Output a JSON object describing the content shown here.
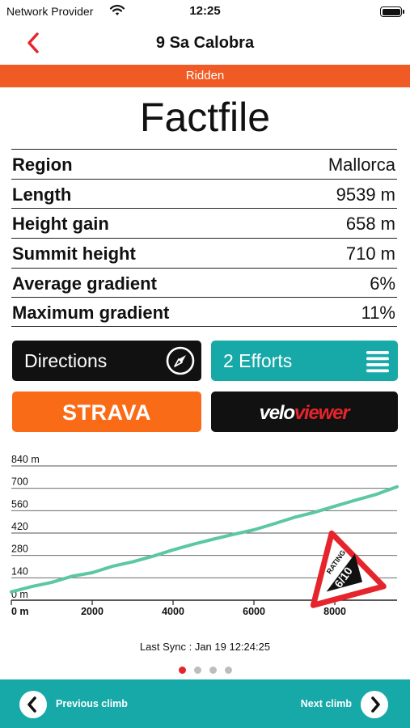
{
  "status_bar": {
    "carrier": "Network Provider",
    "time": "12:25"
  },
  "nav": {
    "title": "9 Sa Calobra"
  },
  "banner": {
    "text": "Ridden"
  },
  "heading": "Factfile",
  "facts": [
    {
      "label": "Region",
      "value": "Mallorca"
    },
    {
      "label": "Length",
      "value": "9539 m"
    },
    {
      "label": "Height gain",
      "value": "658 m"
    },
    {
      "label": "Summit height",
      "value": "710 m"
    },
    {
      "label": "Average gradient",
      "value": "6%"
    },
    {
      "label": "Maximum gradient",
      "value": "11%"
    }
  ],
  "buttons": {
    "directions": "Directions",
    "efforts": "2 Efforts",
    "strava": "STRAVA",
    "veloviewer_a": "velo",
    "veloviewer_b": "viewer"
  },
  "rating": {
    "label": "RATING",
    "value": "6/10"
  },
  "chart_data": {
    "type": "line",
    "x": [
      0,
      500,
      1000,
      1500,
      2000,
      2500,
      3000,
      3500,
      4000,
      4500,
      5000,
      5500,
      6000,
      6500,
      7000,
      7500,
      8000,
      8500,
      9000,
      9539
    ],
    "y": [
      52,
      85,
      112,
      150,
      172,
      212,
      240,
      275,
      315,
      350,
      382,
      412,
      440,
      478,
      518,
      550,
      588,
      625,
      660,
      710
    ],
    "xlim": [
      0,
      9539
    ],
    "ylim": [
      0,
      840
    ],
    "yticks": [
      "0 m",
      "140",
      "280",
      "420",
      "560",
      "700",
      "840 m"
    ],
    "xticks": [
      "0 m",
      "2000",
      "4000",
      "6000",
      "8000"
    ],
    "line_color": "#5cc7a4",
    "grid": true
  },
  "sync": "Last Sync : Jan 19 12:24:25",
  "pager": {
    "count": 4,
    "active": 0
  },
  "bottom": {
    "prev": "Previous climb",
    "next": "Next climb"
  },
  "colors": {
    "accent": "#f05a24",
    "teal": "#17a9a8",
    "strava": "#f96b16",
    "back_red": "#e5252b"
  }
}
